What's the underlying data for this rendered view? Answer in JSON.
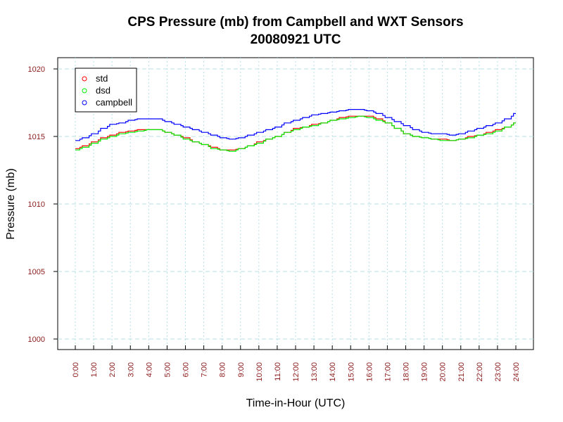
{
  "chart_data": {
    "type": "line",
    "title": "CPS Pressure (mb) from Campbell and WXT Sensors",
    "subtitle": "20080921  UTC",
    "xlabel": "Time-in-Hour (UTC)",
    "ylabel": "Pressure (mb)",
    "xlim": [
      0,
      24
    ],
    "ylim": [
      1000,
      1020
    ],
    "x_tick_labels": [
      "0:00",
      "1:00",
      "2:00",
      "3:00",
      "4:00",
      "5:00",
      "6:00",
      "7:00",
      "8:00",
      "9:00",
      "10:00",
      "11:00",
      "12:00",
      "13:00",
      "14:00",
      "15:00",
      "16:00",
      "17:00",
      "18:00",
      "19:00",
      "20:00",
      "21:00",
      "22:00",
      "23:00",
      "24:00"
    ],
    "y_tick_labels": [
      "1000",
      "1005",
      "1010",
      "1015",
      "1020"
    ],
    "y_ticks": [
      1000,
      1005,
      1010,
      1015,
      1020
    ],
    "grid": true,
    "legend_position": "top-left",
    "x": [
      0,
      0.5,
      1,
      1.5,
      2,
      2.5,
      3,
      3.5,
      4,
      4.5,
      5,
      5.5,
      6,
      6.5,
      7,
      7.5,
      8,
      8.5,
      9,
      9.5,
      10,
      10.5,
      11,
      11.5,
      12,
      12.5,
      13,
      13.5,
      14,
      14.5,
      15,
      15.5,
      16,
      16.5,
      17,
      17.5,
      18,
      18.5,
      19,
      19.5,
      20,
      20.5,
      21,
      21.5,
      22,
      22.5,
      23,
      23.5,
      24
    ],
    "series": [
      {
        "name": "std",
        "color": "#ff0000",
        "values": [
          1014.1,
          1014.3,
          1014.6,
          1014.9,
          1015.1,
          1015.3,
          1015.4,
          1015.5,
          1015.5,
          1015.5,
          1015.3,
          1015.1,
          1014.9,
          1014.6,
          1014.4,
          1014.2,
          1014.0,
          1014.0,
          1014.1,
          1014.3,
          1014.6,
          1014.8,
          1015.0,
          1015.3,
          1015.6,
          1015.7,
          1015.9,
          1016.0,
          1016.2,
          1016.4,
          1016.5,
          1016.5,
          1016.5,
          1016.3,
          1016.0,
          1015.6,
          1015.2,
          1015.0,
          1014.9,
          1014.8,
          1014.8,
          1014.7,
          1014.8,
          1015.0,
          1015.1,
          1015.3,
          1015.5,
          1015.7,
          1016.0
        ]
      },
      {
        "name": "dsd",
        "color": "#00ee00",
        "values": [
          1014.0,
          1014.2,
          1014.5,
          1014.8,
          1015.0,
          1015.2,
          1015.3,
          1015.4,
          1015.5,
          1015.5,
          1015.3,
          1015.1,
          1014.8,
          1014.6,
          1014.4,
          1014.1,
          1014.0,
          1013.9,
          1014.1,
          1014.3,
          1014.5,
          1014.8,
          1015.0,
          1015.3,
          1015.5,
          1015.7,
          1015.8,
          1016.0,
          1016.2,
          1016.3,
          1016.4,
          1016.5,
          1016.4,
          1016.2,
          1016.0,
          1015.6,
          1015.2,
          1015.0,
          1014.9,
          1014.8,
          1014.7,
          1014.7,
          1014.8,
          1014.9,
          1015.1,
          1015.2,
          1015.4,
          1015.7,
          1016.0
        ]
      },
      {
        "name": "campbell",
        "color": "#0000ff",
        "values": [
          1014.7,
          1014.9,
          1015.2,
          1015.6,
          1015.9,
          1016.0,
          1016.2,
          1016.3,
          1016.3,
          1016.3,
          1016.1,
          1015.9,
          1015.7,
          1015.5,
          1015.3,
          1015.1,
          1014.9,
          1014.8,
          1014.9,
          1015.1,
          1015.3,
          1015.5,
          1015.7,
          1016.0,
          1016.2,
          1016.4,
          1016.6,
          1016.7,
          1016.8,
          1016.9,
          1017.0,
          1017.0,
          1016.9,
          1016.7,
          1016.4,
          1016.1,
          1015.8,
          1015.5,
          1015.3,
          1015.2,
          1015.2,
          1015.1,
          1015.2,
          1015.4,
          1015.6,
          1015.8,
          1016.0,
          1016.3,
          1016.7
        ]
      }
    ]
  }
}
